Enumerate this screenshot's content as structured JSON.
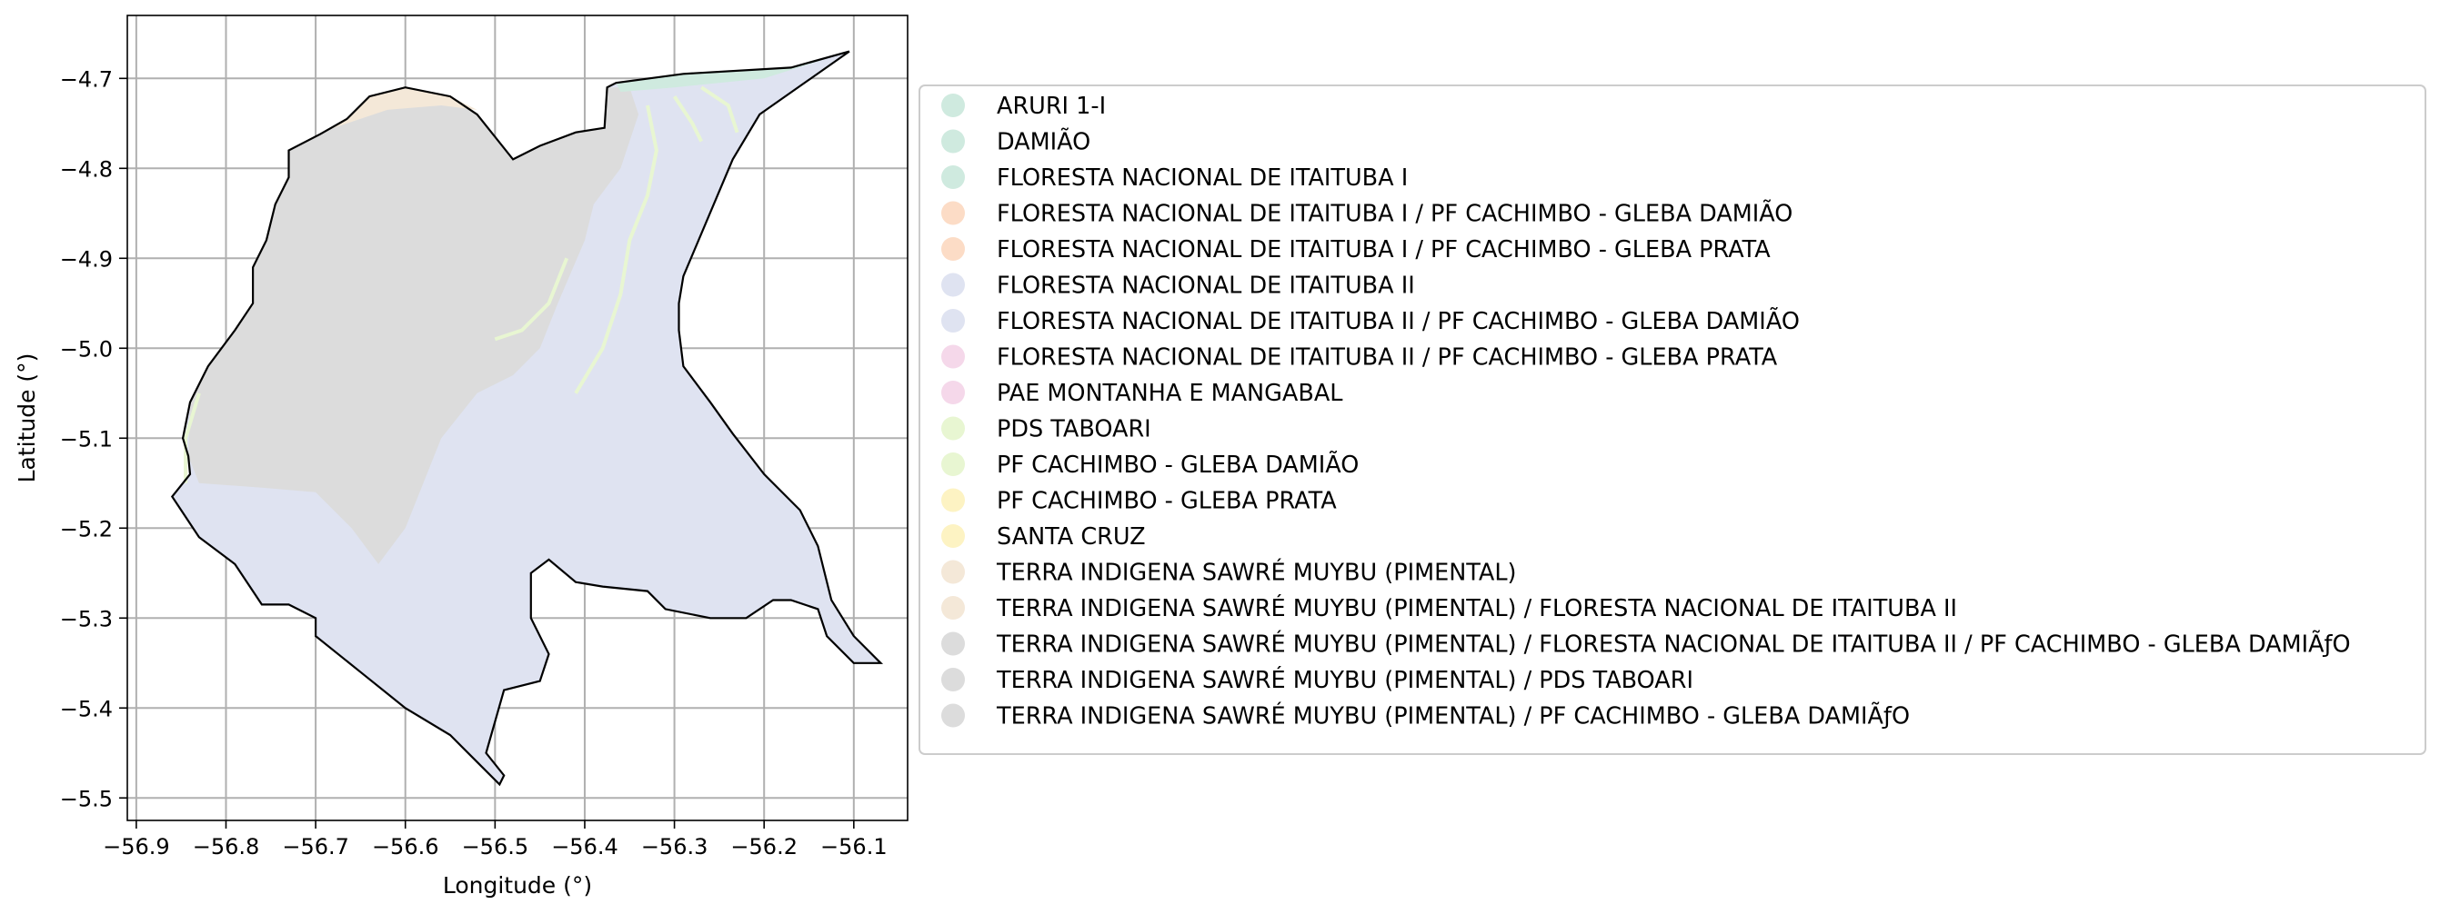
{
  "chart_data": {
    "type": "map",
    "xlabel": "Longitude (°)",
    "ylabel": "Latitude (°)",
    "xlim": [
      -56.91,
      -56.04
    ],
    "ylim": [
      -5.525,
      -4.63
    ],
    "xticks": [
      -56.9,
      -56.8,
      -56.7,
      -56.6,
      -56.5,
      -56.4,
      -56.3,
      -56.2,
      -56.1
    ],
    "xtick_labels": [
      "−56.9",
      "−56.8",
      "−56.7",
      "−56.6",
      "−56.5",
      "−56.4",
      "−56.3",
      "−56.2",
      "−56.1"
    ],
    "yticks": [
      -4.7,
      -4.8,
      -4.9,
      -5.0,
      -5.1,
      -5.2,
      -5.3,
      -5.4,
      -5.5
    ],
    "ytick_labels": [
      "−4.7",
      "−4.8",
      "−4.9",
      "−5.0",
      "−5.1",
      "−5.2",
      "−5.3",
      "−5.4",
      "−5.5"
    ],
    "grid": true,
    "legend_position": "right",
    "outline": [
      [
        -56.105,
        -4.67
      ],
      [
        -56.17,
        -4.688
      ],
      [
        -56.29,
        -4.695
      ],
      [
        -56.365,
        -4.705
      ],
      [
        -56.375,
        -4.71
      ],
      [
        -56.378,
        -4.755
      ],
      [
        -56.41,
        -4.76
      ],
      [
        -56.45,
        -4.775
      ],
      [
        -56.48,
        -4.79
      ],
      [
        -56.52,
        -4.74
      ],
      [
        -56.55,
        -4.72
      ],
      [
        -56.6,
        -4.71
      ],
      [
        -56.64,
        -4.72
      ],
      [
        -56.665,
        -4.745
      ],
      [
        -56.695,
        -4.762
      ],
      [
        -56.73,
        -4.78
      ],
      [
        -56.73,
        -4.81
      ],
      [
        -56.745,
        -4.84
      ],
      [
        -56.755,
        -4.88
      ],
      [
        -56.77,
        -4.91
      ],
      [
        -56.77,
        -4.95
      ],
      [
        -56.79,
        -4.98
      ],
      [
        -56.82,
        -5.02
      ],
      [
        -56.84,
        -5.06
      ],
      [
        -56.848,
        -5.1
      ],
      [
        -56.842,
        -5.12
      ],
      [
        -56.84,
        -5.14
      ],
      [
        -56.86,
        -5.165
      ],
      [
        -56.85,
        -5.18
      ],
      [
        -56.83,
        -5.21
      ],
      [
        -56.79,
        -5.24
      ],
      [
        -56.77,
        -5.27
      ],
      [
        -56.76,
        -5.285
      ],
      [
        -56.73,
        -5.285
      ],
      [
        -56.7,
        -5.3
      ],
      [
        -56.7,
        -5.32
      ],
      [
        -56.65,
        -5.36
      ],
      [
        -56.6,
        -5.4
      ],
      [
        -56.55,
        -5.43
      ],
      [
        -56.52,
        -5.46
      ],
      [
        -56.495,
        -5.485
      ],
      [
        -56.49,
        -5.475
      ],
      [
        -56.51,
        -5.45
      ],
      [
        -56.49,
        -5.38
      ],
      [
        -56.45,
        -5.37
      ],
      [
        -56.44,
        -5.34
      ],
      [
        -56.46,
        -5.3
      ],
      [
        -56.46,
        -5.25
      ],
      [
        -56.44,
        -5.235
      ],
      [
        -56.41,
        -5.26
      ],
      [
        -56.38,
        -5.265
      ],
      [
        -56.33,
        -5.27
      ],
      [
        -56.31,
        -5.29
      ],
      [
        -56.26,
        -5.3
      ],
      [
        -56.22,
        -5.3
      ],
      [
        -56.19,
        -5.28
      ],
      [
        -56.17,
        -5.28
      ],
      [
        -56.14,
        -5.29
      ],
      [
        -56.13,
        -5.32
      ],
      [
        -56.1,
        -5.35
      ],
      [
        -56.07,
        -5.35
      ],
      [
        -56.1,
        -5.32
      ],
      [
        -56.125,
        -5.28
      ],
      [
        -56.14,
        -5.22
      ],
      [
        -56.16,
        -5.18
      ],
      [
        -56.2,
        -5.14
      ],
      [
        -56.235,
        -5.095
      ],
      [
        -56.26,
        -5.06
      ],
      [
        -56.29,
        -5.02
      ],
      [
        -56.295,
        -4.98
      ],
      [
        -56.295,
        -4.95
      ],
      [
        -56.29,
        -4.92
      ],
      [
        -56.235,
        -4.79
      ],
      [
        -56.205,
        -4.74
      ],
      [
        -56.105,
        -4.67
      ]
    ],
    "territory_outline": [
      [
        -56.375,
        -4.71
      ],
      [
        -56.378,
        -4.755
      ],
      [
        -56.41,
        -4.76
      ],
      [
        -56.45,
        -4.775
      ],
      [
        -56.48,
        -4.79
      ],
      [
        -56.52,
        -4.74
      ],
      [
        -56.55,
        -4.72
      ],
      [
        -56.6,
        -4.71
      ],
      [
        -56.64,
        -4.72
      ],
      [
        -56.665,
        -4.745
      ],
      [
        -56.695,
        -4.762
      ],
      [
        -56.73,
        -4.78
      ],
      [
        -56.73,
        -4.81
      ],
      [
        -56.745,
        -4.84
      ],
      [
        -56.755,
        -4.88
      ],
      [
        -56.77,
        -4.91
      ],
      [
        -56.77,
        -4.95
      ],
      [
        -56.79,
        -4.98
      ],
      [
        -56.82,
        -5.02
      ],
      [
        -56.84,
        -5.06
      ],
      [
        -56.842,
        -5.12
      ],
      [
        -56.83,
        -5.15
      ],
      [
        -56.76,
        -5.155
      ],
      [
        -56.7,
        -5.16
      ],
      [
        -56.66,
        -5.2
      ],
      [
        -56.63,
        -5.24
      ],
      [
        -56.6,
        -5.2
      ],
      [
        -56.56,
        -5.1
      ],
      [
        -56.52,
        -5.05
      ],
      [
        -56.48,
        -5.03
      ],
      [
        -56.45,
        -5.0
      ],
      [
        -56.43,
        -4.95
      ],
      [
        -56.4,
        -4.88
      ],
      [
        -56.39,
        -4.84
      ],
      [
        -56.36,
        -4.8
      ],
      [
        -56.34,
        -4.74
      ],
      [
        -56.35,
        -4.71
      ],
      [
        -56.375,
        -4.71
      ]
    ],
    "legend": [
      {
        "label": "ARURI 1-I",
        "color": "#cfeadf"
      },
      {
        "label": "DAMIÃO",
        "color": "#cfeadf"
      },
      {
        "label": "FLORESTA NACIONAL DE ITAITUBA I",
        "color": "#cfeadf"
      },
      {
        "label": "FLORESTA NACIONAL DE ITAITUBA I / PF CACHIMBO - GLEBA DAMIÃO",
        "color": "#fcdcc6"
      },
      {
        "label": "FLORESTA NACIONAL DE ITAITUBA I / PF CACHIMBO - GLEBA PRATA",
        "color": "#fcdcc6"
      },
      {
        "label": "FLORESTA NACIONAL DE ITAITUBA II",
        "color": "#dfe3f1"
      },
      {
        "label": "FLORESTA NACIONAL DE ITAITUBA II / PF CACHIMBO - GLEBA DAMIÃO",
        "color": "#dfe3f1"
      },
      {
        "label": "FLORESTA NACIONAL DE ITAITUBA II / PF CACHIMBO - GLEBA PRATA",
        "color": "#f5d8ea"
      },
      {
        "label": "PAE MONTANHA E MANGABAL",
        "color": "#f5d8ea"
      },
      {
        "label": "PDS TABOARI",
        "color": "#e8f6d2"
      },
      {
        "label": "PF CACHIMBO - GLEBA DAMIÃO",
        "color": "#e8f6d2"
      },
      {
        "label": "PF CACHIMBO - GLEBA PRATA",
        "color": "#fdf3c3"
      },
      {
        "label": "SANTA CRUZ",
        "color": "#fdf3c3"
      },
      {
        "label": "TERRA INDIGENA SAWRÉ MUYBU (PIMENTAL)",
        "color": "#f4e8d8"
      },
      {
        "label": "TERRA INDIGENA SAWRÉ MUYBU (PIMENTAL) / FLORESTA NACIONAL DE ITAITUBA II",
        "color": "#f4e8d8"
      },
      {
        "label": "TERRA INDIGENA SAWRÉ MUYBU (PIMENTAL) / FLORESTA NACIONAL DE ITAITUBA II / PF CACHIMBO - GLEBA DAMIÃƒO",
        "color": "#dcdcdc"
      },
      {
        "label": "TERRA INDIGENA SAWRÉ MUYBU (PIMENTAL) / PDS TABOARI",
        "color": "#dcdcdc"
      },
      {
        "label": "TERRA INDIGENA SAWRÉ MUYBU (PIMENTAL) / PF CACHIMBO - GLEBA DAMIÃƒO",
        "color": "#dcdcdc"
      }
    ],
    "colors": {
      "main_fill": "#dfe3f1",
      "territory_fill": "#dcdcdc",
      "north_strip": "#cfeadf",
      "nw_strip": "#f4e8d8",
      "river": "#e8f6d2",
      "grid": "#b0b0b0",
      "outline": "#000000"
    }
  }
}
